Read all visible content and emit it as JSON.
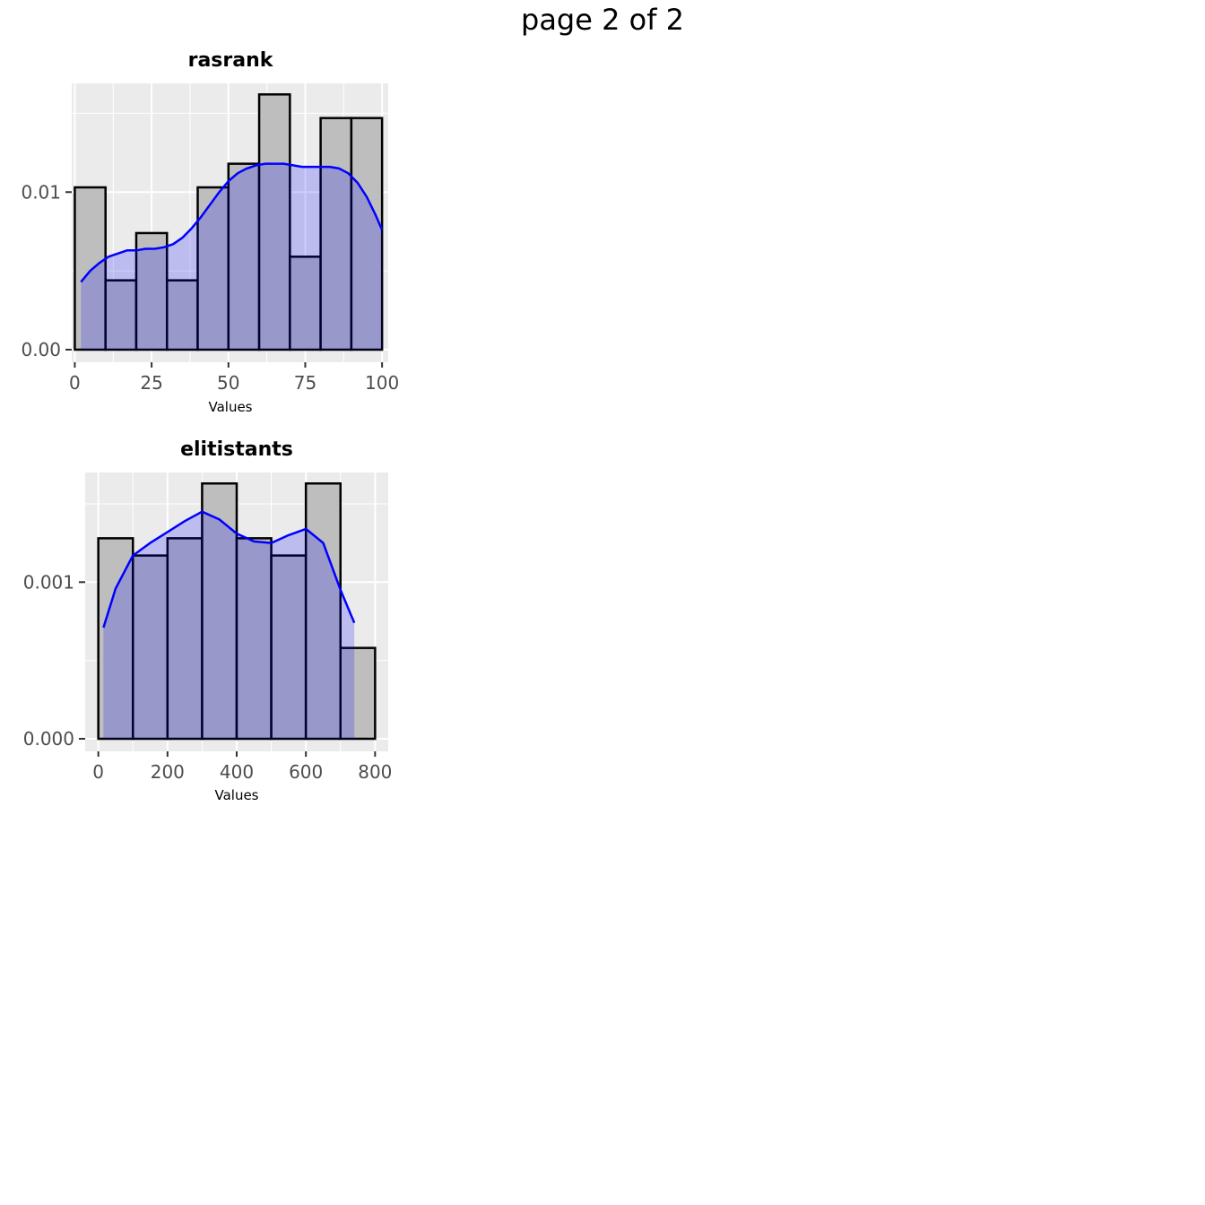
{
  "page": {
    "title": "page 2 of 2"
  },
  "colors": {
    "panel_bg": "#ebebeb",
    "grid": "#ffffff",
    "bar_fill": "#bebebe",
    "bar_stroke": "#000000",
    "density_line": "#0000ff",
    "density_fill": "#0000ff",
    "tick_text": "#4d4d4d"
  },
  "chart_data": [
    {
      "type": "bar",
      "subtype": "histogram-with-density",
      "title": "rasrank",
      "xlabel": "Values",
      "ylabel": "",
      "xlim": [
        -1,
        102
      ],
      "ylim": [
        0,
        0.0169
      ],
      "x_ticks": [
        0,
        25,
        50,
        75,
        100
      ],
      "x_tick_labels": [
        "0",
        "25",
        "50",
        "75",
        "100"
      ],
      "y_ticks": [
        0,
        0.01
      ],
      "y_tick_labels": [
        "0.00",
        "0.01"
      ],
      "grid": true,
      "bins": [
        {
          "x0": 0,
          "x1": 10,
          "value": 0.0103
        },
        {
          "x0": 10,
          "x1": 20,
          "value": 0.0044
        },
        {
          "x0": 20,
          "x1": 30,
          "value": 0.0074
        },
        {
          "x0": 30,
          "x1": 40,
          "value": 0.0044
        },
        {
          "x0": 40,
          "x1": 50,
          "value": 0.0103
        },
        {
          "x0": 50,
          "x1": 60,
          "value": 0.0118
        },
        {
          "x0": 60,
          "x1": 70,
          "value": 0.0162
        },
        {
          "x0": 70,
          "x1": 80,
          "value": 0.0059
        },
        {
          "x0": 80,
          "x1": 90,
          "value": 0.0147
        },
        {
          "x0": 90,
          "x1": 100,
          "value": 0.0147
        }
      ],
      "density": {
        "x": [
          2,
          5,
          8,
          11,
          14,
          17,
          20,
          23,
          26,
          29,
          32,
          35,
          38,
          41,
          44,
          47,
          50,
          53,
          56,
          59,
          62,
          65,
          68,
          71,
          74,
          77,
          80,
          83,
          86,
          89,
          92,
          95,
          98,
          100
        ],
        "y": [
          0.0043,
          0.005,
          0.0055,
          0.0059,
          0.0061,
          0.0063,
          0.0063,
          0.0064,
          0.0064,
          0.0065,
          0.0067,
          0.0071,
          0.0077,
          0.0084,
          0.0092,
          0.01,
          0.0107,
          0.0112,
          0.0115,
          0.0117,
          0.0118,
          0.0118,
          0.0118,
          0.0117,
          0.0116,
          0.0116,
          0.0116,
          0.0116,
          0.0115,
          0.0112,
          0.0106,
          0.0097,
          0.0085,
          0.0076
        ]
      }
    },
    {
      "type": "bar",
      "subtype": "histogram-with-density",
      "title": "elitistants",
      "xlabel": "Values",
      "ylabel": "",
      "xlim": [
        -38,
        838
      ],
      "ylim": [
        0,
        0.0017
      ],
      "x_ticks": [
        0,
        200,
        400,
        600,
        800
      ],
      "x_tick_labels": [
        "0",
        "200",
        "400",
        "600",
        "800"
      ],
      "y_ticks": [
        0,
        0.001
      ],
      "y_tick_labels": [
        "0.000",
        "0.001"
      ],
      "grid": true,
      "bins": [
        {
          "x0": 0,
          "x1": 100,
          "value": 0.00128
        },
        {
          "x0": 100,
          "x1": 200,
          "value": 0.00117
        },
        {
          "x0": 200,
          "x1": 300,
          "value": 0.00128
        },
        {
          "x0": 300,
          "x1": 400,
          "value": 0.00163
        },
        {
          "x0": 400,
          "x1": 500,
          "value": 0.00128
        },
        {
          "x0": 500,
          "x1": 600,
          "value": 0.00117
        },
        {
          "x0": 600,
          "x1": 700,
          "value": 0.00163
        },
        {
          "x0": 700,
          "x1": 800,
          "value": 0.00058
        }
      ],
      "density": {
        "x": [
          15,
          50,
          100,
          150,
          200,
          250,
          300,
          350,
          400,
          450,
          500,
          550,
          600,
          650,
          700,
          740
        ],
        "y": [
          0.00071,
          0.00096,
          0.00117,
          0.00125,
          0.00132,
          0.00139,
          0.00145,
          0.0014,
          0.00131,
          0.00126,
          0.00125,
          0.0013,
          0.00134,
          0.00125,
          0.00095,
          0.00074
        ]
      }
    }
  ]
}
